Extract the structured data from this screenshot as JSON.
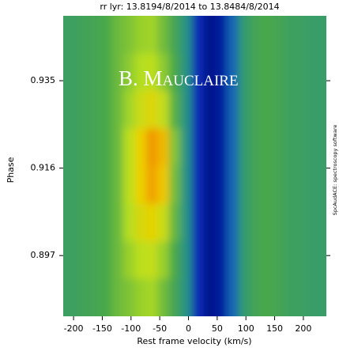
{
  "chart_data": {
    "type": "heatmap",
    "title": "rr lyr: 13.8194/8/2014 to 13.8484/8/2014",
    "x_label": "Rest frame velocity (km/s)",
    "y_label": "Phase",
    "annotation": "B. Mauclaire",
    "side_text": "SpcAudACE: spectroscopy software",
    "x": [
      -210,
      -190,
      -170,
      -150,
      -130,
      -110,
      -90,
      -70,
      -50,
      -30,
      -10,
      10,
      30,
      50,
      70,
      90,
      110,
      130,
      150,
      170,
      190,
      210,
      230
    ],
    "y": [
      0.945,
      0.9368,
      0.9287,
      0.9205,
      0.9124,
      0.9042,
      0.896,
      0.8879
    ],
    "z": [
      [
        0.45,
        0.45,
        0.47,
        0.48,
        0.5,
        0.55,
        0.58,
        0.62,
        0.63,
        0.56,
        0.48,
        0.38,
        0.12,
        0.05,
        0.08,
        0.25,
        0.42,
        0.48,
        0.5,
        0.48,
        0.46,
        0.45,
        0.44
      ],
      [
        0.45,
        0.45,
        0.47,
        0.48,
        0.5,
        0.55,
        0.6,
        0.66,
        0.68,
        0.6,
        0.5,
        0.38,
        0.12,
        0.05,
        0.08,
        0.25,
        0.42,
        0.48,
        0.5,
        0.48,
        0.46,
        0.45,
        0.44
      ],
      [
        0.45,
        0.45,
        0.47,
        0.48,
        0.5,
        0.55,
        0.63,
        0.72,
        0.78,
        0.7,
        0.52,
        0.38,
        0.12,
        0.05,
        0.08,
        0.25,
        0.42,
        0.48,
        0.5,
        0.48,
        0.46,
        0.45,
        0.44
      ],
      [
        0.45,
        0.45,
        0.47,
        0.48,
        0.5,
        0.55,
        0.68,
        0.82,
        0.95,
        0.88,
        0.58,
        0.38,
        0.12,
        0.05,
        0.08,
        0.25,
        0.42,
        0.48,
        0.5,
        0.48,
        0.46,
        0.45,
        0.44
      ],
      [
        0.45,
        0.45,
        0.47,
        0.48,
        0.5,
        0.55,
        0.68,
        0.82,
        0.93,
        0.85,
        0.56,
        0.38,
        0.12,
        0.05,
        0.08,
        0.25,
        0.42,
        0.48,
        0.5,
        0.48,
        0.46,
        0.45,
        0.44
      ],
      [
        0.45,
        0.45,
        0.47,
        0.48,
        0.5,
        0.55,
        0.66,
        0.76,
        0.8,
        0.72,
        0.54,
        0.38,
        0.12,
        0.05,
        0.08,
        0.25,
        0.42,
        0.48,
        0.5,
        0.48,
        0.46,
        0.45,
        0.44
      ],
      [
        0.45,
        0.45,
        0.47,
        0.48,
        0.5,
        0.55,
        0.62,
        0.68,
        0.7,
        0.62,
        0.5,
        0.38,
        0.12,
        0.05,
        0.08,
        0.25,
        0.42,
        0.48,
        0.5,
        0.48,
        0.46,
        0.45,
        0.44
      ],
      [
        0.45,
        0.45,
        0.47,
        0.48,
        0.5,
        0.55,
        0.58,
        0.62,
        0.64,
        0.56,
        0.48,
        0.38,
        0.12,
        0.05,
        0.08,
        0.25,
        0.42,
        0.48,
        0.5,
        0.48,
        0.46,
        0.45,
        0.44
      ]
    ],
    "xlim": [
      -218,
      240
    ],
    "ylim": [
      0.8838,
      0.9491
    ],
    "xticks": [
      -200,
      -150,
      -100,
      -50,
      0,
      50,
      100,
      150,
      200
    ],
    "yticks": [
      0.897,
      0.916,
      0.935
    ],
    "colormap": [
      "#00006e",
      "#0a3cd0",
      "#1a8a9a",
      "#4aa84a",
      "#b8e020",
      "#f0d000",
      "#f08000"
    ]
  }
}
